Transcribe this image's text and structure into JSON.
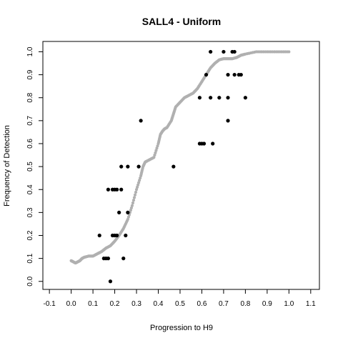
{
  "chart_data": {
    "type": "scatter",
    "title": "SALL4 - Uniform",
    "xlabel": "Progression to H9",
    "ylabel": "Frequency of Detection",
    "xlim": [
      -0.13,
      1.14
    ],
    "ylim": [
      -0.035,
      1.045
    ],
    "x_ticks": [
      "-0.1",
      "0.0",
      "0.1",
      "0.2",
      "0.3",
      "0.4",
      "0.5",
      "0.6",
      "0.7",
      "0.8",
      "0.9",
      "1.0",
      "1.1"
    ],
    "y_ticks": [
      "0.0",
      "0.1",
      "0.2",
      "0.3",
      "0.4",
      "0.5",
      "0.6",
      "0.7",
      "0.8",
      "0.9",
      "1.0"
    ],
    "grid": false,
    "colors": {
      "observed": "#000000",
      "curve": "#b0b0b0"
    },
    "series": [
      {
        "kind": "curve",
        "x": [
          0.0,
          0.01,
          0.02,
          0.03,
          0.04,
          0.05,
          0.06,
          0.08,
          0.1,
          0.12,
          0.14,
          0.16,
          0.18,
          0.2,
          0.22,
          0.24,
          0.26,
          0.28,
          0.3,
          0.32,
          0.33,
          0.34,
          0.36,
          0.38,
          0.4,
          0.41,
          0.42,
          0.43,
          0.44,
          0.46,
          0.47,
          0.48,
          0.5,
          0.52,
          0.54,
          0.56,
          0.58,
          0.6,
          0.62,
          0.64,
          0.66,
          0.68,
          0.7,
          0.72,
          0.74,
          0.76,
          0.78,
          0.8,
          0.85,
          0.9,
          0.95,
          1.0
        ],
        "y": [
          0.09,
          0.085,
          0.08,
          0.085,
          0.09,
          0.1,
          0.105,
          0.11,
          0.11,
          0.12,
          0.13,
          0.145,
          0.155,
          0.175,
          0.2,
          0.23,
          0.27,
          0.33,
          0.4,
          0.46,
          0.5,
          0.52,
          0.53,
          0.54,
          0.6,
          0.64,
          0.655,
          0.665,
          0.67,
          0.7,
          0.73,
          0.76,
          0.78,
          0.8,
          0.81,
          0.82,
          0.84,
          0.87,
          0.9,
          0.93,
          0.95,
          0.965,
          0.97,
          0.97,
          0.97,
          0.975,
          0.985,
          0.99,
          1.0,
          1.0,
          1.0,
          1.0
        ]
      },
      {
        "kind": "points",
        "x": [
          0.18,
          0.15,
          0.16,
          0.17,
          0.24,
          0.13,
          0.19,
          0.2,
          0.21,
          0.25,
          0.22,
          0.26,
          0.17,
          0.19,
          0.2,
          0.21,
          0.23,
          0.23,
          0.26,
          0.31,
          0.47,
          0.59,
          0.6,
          0.61,
          0.65,
          0.32,
          0.72,
          0.59,
          0.64,
          0.68,
          0.72,
          0.8,
          0.62,
          0.72,
          0.75,
          0.77,
          0.78,
          0.64,
          0.7,
          0.74,
          0.75
        ],
        "y": [
          0.0,
          0.1,
          0.1,
          0.1,
          0.1,
          0.2,
          0.2,
          0.2,
          0.2,
          0.2,
          0.3,
          0.3,
          0.4,
          0.4,
          0.4,
          0.4,
          0.4,
          0.5,
          0.5,
          0.5,
          0.5,
          0.6,
          0.6,
          0.6,
          0.6,
          0.7,
          0.7,
          0.8,
          0.8,
          0.8,
          0.8,
          0.8,
          0.9,
          0.9,
          0.9,
          0.9,
          0.9,
          1.0,
          1.0,
          1.0,
          1.0
        ]
      }
    ]
  }
}
